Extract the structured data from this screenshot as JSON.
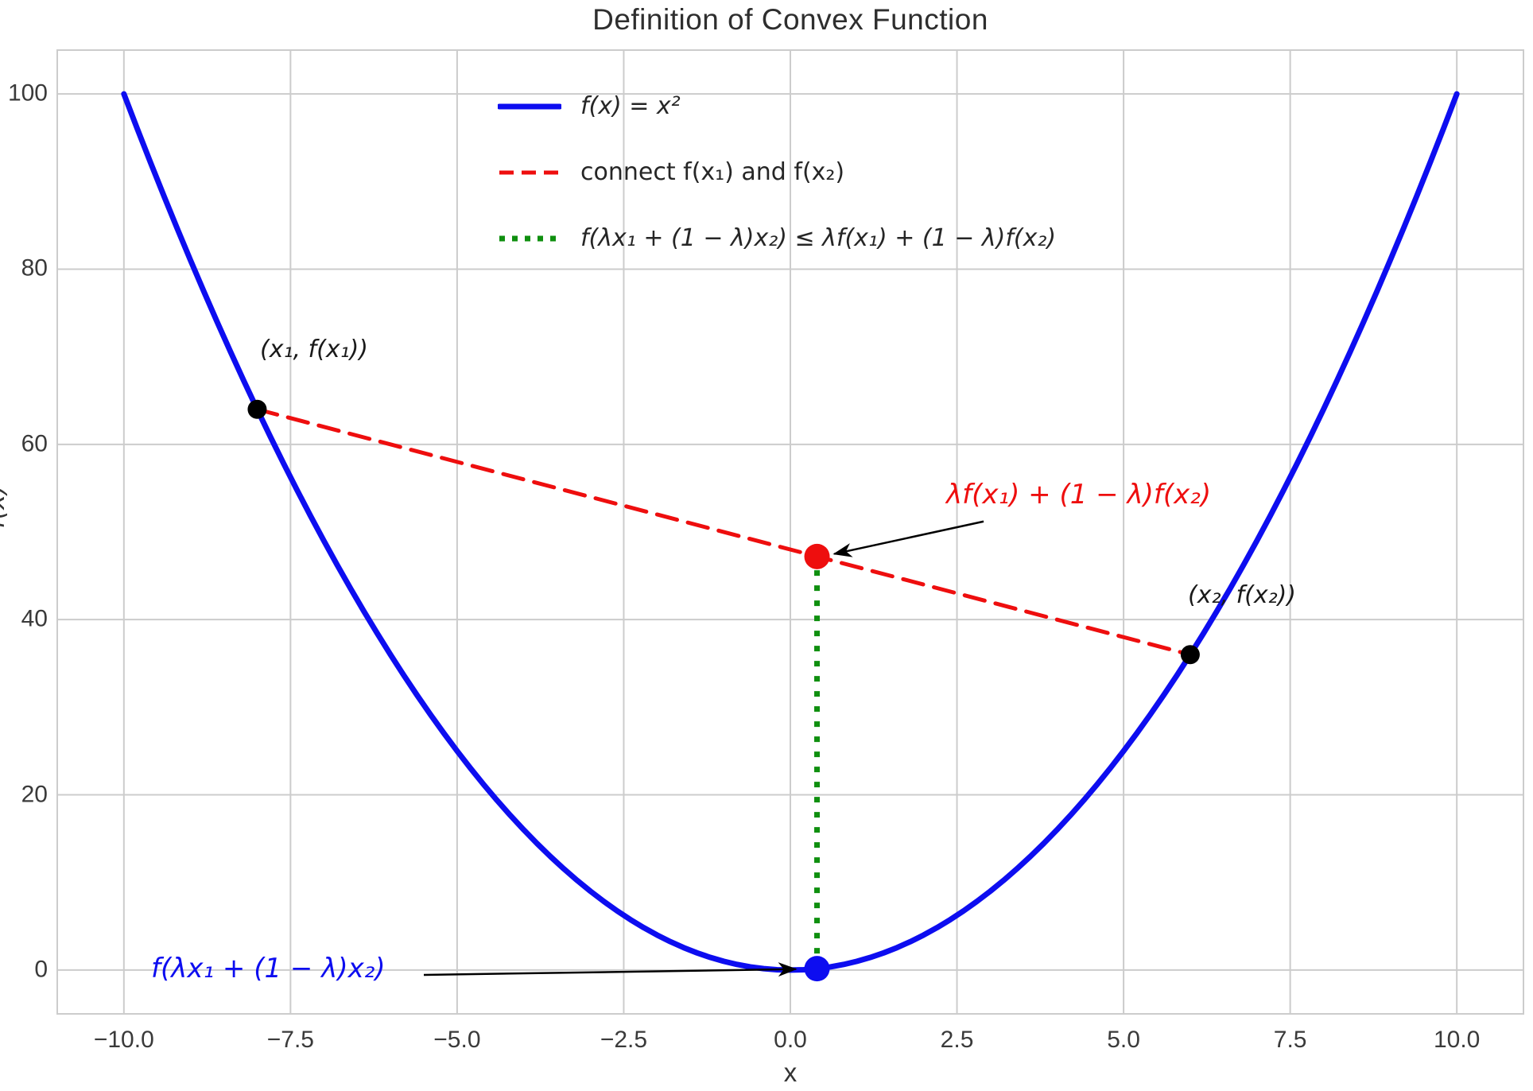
{
  "figure": {
    "title": "Definition of Convex Function",
    "xlabel": "x",
    "ylabel": "f(x)"
  },
  "legend": {
    "entries": [
      {
        "label": "f(x) = x²",
        "color": "#0d0df0",
        "style": "solid",
        "math": true
      },
      {
        "label": "connect f(x₁) and f(x₂)",
        "color": "#ee0e0e",
        "style": "dashed",
        "math": false
      },
      {
        "label": "f(λx₁ + (1 − λ)x₂) ≤ λf(x₁) + (1 − λ)f(x₂)",
        "color": "#0f8f0f",
        "style": "dotted",
        "math": true
      }
    ]
  },
  "annotations": {
    "point1_label": "(x₁, f(x₁))",
    "point2_label": "(x₂, f(x₂))",
    "chord_value_label": "λf(x₁) + (1 − λ)f(x₂)",
    "function_value_label": "f(λx₁ + (1 − λ)x₂)"
  },
  "chart_data": {
    "type": "line",
    "title": "Definition of Convex Function",
    "xlabel": "x",
    "ylabel": "f(x)",
    "xlim": [
      -11,
      11
    ],
    "ylim": [
      -5,
      105
    ],
    "xticks": [
      -10,
      -7.5,
      -5,
      -2.5,
      0,
      2.5,
      5,
      7.5,
      10
    ],
    "xtick_labels": [
      "−10.0",
      "−7.5",
      "−5.0",
      "−2.5",
      "0.0",
      "2.5",
      "5.0",
      "7.5",
      "10.0"
    ],
    "yticks": [
      0,
      20,
      40,
      60,
      80,
      100
    ],
    "ytick_labels": [
      "0",
      "20",
      "40",
      "60",
      "80",
      "100"
    ],
    "grid": true,
    "grid_color": "#cccccc",
    "background": "#ffffff",
    "legend_position": "upper center frameless",
    "lambda": 0.4,
    "x1": -8,
    "f_x1": 64,
    "x2": 6,
    "f_x2": 36,
    "chord_point": {
      "x": 0.4,
      "y": 47.2
    },
    "curve_point": {
      "x": 0.4,
      "y": 0.16
    },
    "series": [
      {
        "name": "f(x) = x²",
        "expr": "x^2",
        "x_range": [
          -10,
          10
        ],
        "color": "#0d0df0",
        "style": "solid",
        "width": 7,
        "z": 3
      },
      {
        "name": "connect f(x₁) and f(x₂)",
        "x": [
          -8,
          6
        ],
        "y": [
          64,
          36
        ],
        "color": "#ee0e0e",
        "style": "dashed",
        "width": 5,
        "z": 1
      },
      {
        "name": "f(λx₁ + (1 − λ)x₂) ≤ λf(x₁) + (1 − λ)f(x₂)",
        "x": [
          0.4,
          0.4
        ],
        "y": [
          0.16,
          47.2
        ],
        "color": "#0f8f0f",
        "style": "dotted",
        "width": 7,
        "z": 2
      }
    ],
    "points": [
      {
        "name": "point-x1",
        "x": -8,
        "y": 64,
        "color": "#000000",
        "r": 12
      },
      {
        "name": "point-x2",
        "x": 6,
        "y": 36,
        "color": "#000000",
        "r": 12
      },
      {
        "name": "point-chord",
        "x": 0.4,
        "y": 47.2,
        "color": "#ee0e0e",
        "r": 16
      },
      {
        "name": "point-curve",
        "x": 0.4,
        "y": 0.16,
        "color": "#0d0df0",
        "r": 16
      }
    ],
    "annotation_arrows": [
      {
        "from": [
          2.9,
          51.2
        ],
        "to": [
          0.66,
          47.5
        ]
      },
      {
        "from": [
          -5.5,
          -0.55
        ],
        "to": [
          0.08,
          0.1
        ]
      }
    ]
  }
}
